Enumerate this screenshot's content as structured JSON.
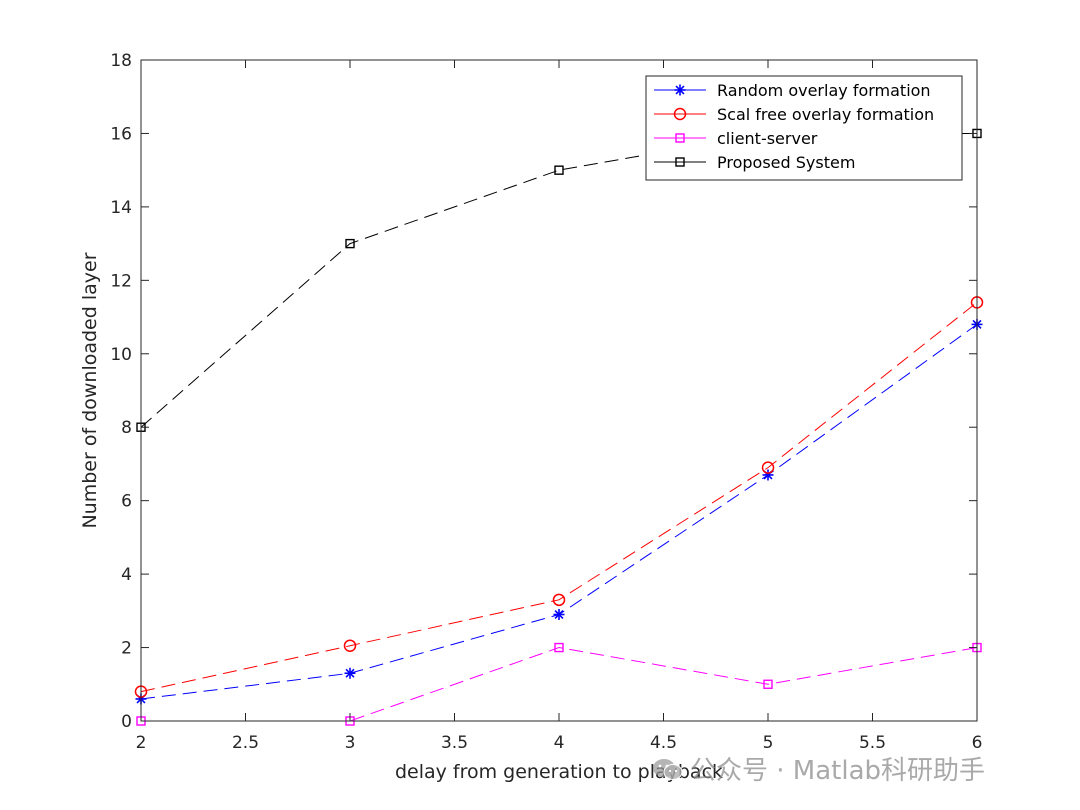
{
  "chart_data": {
    "type": "line",
    "title": "",
    "xlabel": "delay from generation to playback",
    "ylabel": "Number of downloaded layer",
    "xlim": [
      2,
      6
    ],
    "ylim": [
      0,
      18
    ],
    "xticks": [
      2,
      2.5,
      3,
      3.5,
      4,
      4.5,
      5,
      5.5,
      6
    ],
    "xtick_labels": [
      "2",
      "2.5",
      "3",
      "3.5",
      "4",
      "4.5",
      "5",
      "5.5",
      "6"
    ],
    "yticks": [
      0,
      2,
      4,
      6,
      8,
      10,
      12,
      14,
      16,
      18
    ],
    "ytick_labels": [
      "0",
      "2",
      "4",
      "6",
      "8",
      "10",
      "12",
      "14",
      "16",
      "18"
    ],
    "grid": false,
    "legend_position": "top-right",
    "x": [
      2,
      3,
      4,
      5,
      6
    ],
    "series": [
      {
        "name": "Random overlay formation",
        "values": [
          0.6,
          1.3,
          2.9,
          6.7,
          10.8
        ],
        "color": "#0000ff",
        "marker": "asterisk",
        "dash": "dashed"
      },
      {
        "name": "Scal free overlay formation",
        "values": [
          0.8,
          2.05,
          3.3,
          6.9,
          11.4
        ],
        "color": "#ff0000",
        "marker": "circle",
        "dash": "dashed"
      },
      {
        "name": "client-server",
        "values": [
          0,
          0,
          2,
          1,
          2
        ],
        "color": "#ff00ff",
        "marker": "square",
        "dash": "dashed"
      },
      {
        "name": "Proposed System",
        "values": [
          8,
          13,
          15,
          16,
          16
        ],
        "color": "#000000",
        "marker": "square",
        "dash": "dashed"
      }
    ]
  },
  "watermark": {
    "text": "公众号 · Matlab科研助手",
    "icon": "wechat-icon"
  }
}
